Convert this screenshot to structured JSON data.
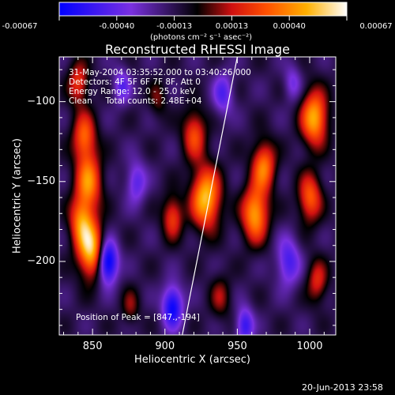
{
  "colorbar": {
    "ticks": [
      "-0.00067",
      "-0.00040",
      "-0.00013",
      "0.00013",
      "0.00040",
      "0.00067"
    ],
    "units_label": "(photons cm⁻² s⁻¹ asec⁻²)"
  },
  "chart_data": {
    "type": "heatmap",
    "title": "Reconstructed RHESSI Image",
    "xlabel": "Heliocentric X (arcsec)",
    "ylabel": "Heliocentric Y (arcsec)",
    "xlim": [
      827,
      1018
    ],
    "ylim": [
      -246,
      -72
    ],
    "xticks": [
      "850",
      "900",
      "950",
      "1000"
    ],
    "yticks": [
      "-100",
      "-150",
      "-200"
    ],
    "colorbar_range": [
      -0.00067,
      0.00067
    ],
    "colormap": "blue-purple-black-red-orange-yellow-white",
    "annotations": {
      "time_range": "31-May-2004 03:35:52.000 to 03:40:26.000",
      "detectors": "Detectors: 4F 5F 6F 7F 8F, Att 0",
      "energy": "Energy Range: 12.0 - 25.0 keV",
      "method": "Clean     Total counts: 2.48E+04",
      "peak": "Position of Peak = [847.,-194]"
    },
    "peak_position": [
      847,
      -194
    ],
    "sources": [
      {
        "x": 849,
        "y": -193,
        "r": 9,
        "v": 0.00067
      },
      {
        "x": 842,
        "y": -175,
        "r": 8,
        "v": 0.00048
      },
      {
        "x": 847,
        "y": -150,
        "r": 9,
        "v": 0.00052
      },
      {
        "x": 844,
        "y": -122,
        "r": 8,
        "v": 0.00045
      },
      {
        "x": 840,
        "y": -88,
        "r": 7,
        "v": 0.00036
      },
      {
        "x": 928,
        "y": -160,
        "r": 10,
        "v": 0.00066
      },
      {
        "x": 920,
        "y": -120,
        "r": 8,
        "v": 0.0004
      },
      {
        "x": 905,
        "y": -172,
        "r": 7,
        "v": 0.00038
      },
      {
        "x": 962,
        "y": -170,
        "r": 9,
        "v": 0.0006
      },
      {
        "x": 968,
        "y": -140,
        "r": 8,
        "v": 0.0005
      },
      {
        "x": 1003,
        "y": -110,
        "r": 9,
        "v": 0.00062
      },
      {
        "x": 1000,
        "y": -160,
        "r": 8,
        "v": 0.00045
      },
      {
        "x": 1005,
        "y": -212,
        "r": 7,
        "v": 0.00032
      },
      {
        "x": 895,
        "y": -98,
        "r": 6,
        "v": 0.00018
      },
      {
        "x": 938,
        "y": -222,
        "r": 7,
        "v": 0.00022
      },
      {
        "x": 876,
        "y": -228,
        "r": 6,
        "v": 0.0002
      },
      {
        "x": 860,
        "y": -200,
        "r": 7,
        "v": -0.00066
      },
      {
        "x": 905,
        "y": -228,
        "r": 7,
        "v": -0.00052
      },
      {
        "x": 880,
        "y": -150,
        "r": 7,
        "v": -0.0003
      },
      {
        "x": 940,
        "y": -95,
        "r": 7,
        "v": -0.0003
      },
      {
        "x": 985,
        "y": -200,
        "r": 8,
        "v": -0.00035
      },
      {
        "x": 988,
        "y": -88,
        "r": 6,
        "v": -0.00022
      },
      {
        "x": 955,
        "y": -240,
        "r": 6,
        "v": -0.0004
      },
      {
        "x": 870,
        "y": -90,
        "r": 6,
        "v": -0.00028
      }
    ],
    "limb_line": {
      "x": [
        912,
        950
      ],
      "y": [
        -246,
        -72
      ]
    }
  },
  "footer": {
    "timestamp": "20-Jun-2013 23:58"
  }
}
